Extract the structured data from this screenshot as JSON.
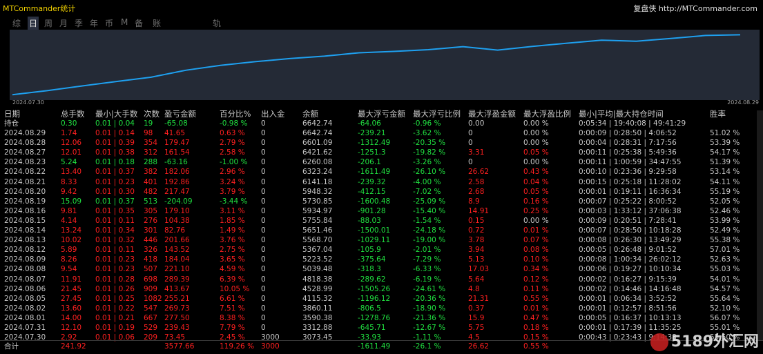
{
  "app_title": "MTCommander统计",
  "site": "复盘侠 http://MTCommander.com",
  "tabs": [
    "综",
    "日",
    "周",
    "月",
    "季",
    "年",
    "币",
    "M",
    "备",
    "账户",
    "轨迹"
  ],
  "active_tab": "日",
  "chart": {
    "x_start": "2024.07.30",
    "x_end": "2024.08.29",
    "line_color": "#1ea0f0",
    "bg_color": "#242a36",
    "curve": [
      3073.45,
      3312.88,
      3590.38,
      3860.11,
      4115.32,
      4528.99,
      4818.38,
      5039.48,
      5223.52,
      5367.04,
      5568.7,
      5651.46,
      5755.84,
      5934.97,
      5730.85,
      5948.32,
      6141.18,
      6323.24,
      6260.08,
      6421.62,
      6601.09,
      6642.74
    ]
  },
  "headers": [
    "日期",
    "总手数",
    "最小|大手数",
    "次数",
    "盈亏金额",
    "百分比%",
    "出入金",
    "余额",
    "最大浮亏金额",
    "最大浮亏比例",
    "最大浮盈金额",
    "最大浮盈比例",
    "最小|平均|最大持仓时间",
    "胜率"
  ],
  "position_row": [
    "持仓",
    "0.30",
    "0.01 | 0.04",
    "19",
    "-65.08",
    "-0.98 %",
    "0",
    "6642.74",
    "-64.06",
    "-0.96 %",
    "0.00",
    "0.00 %",
    "0:05:34 | 19:40:08 | 49:41:29",
    ""
  ],
  "rows": [
    [
      "2024.08.29",
      "1.74",
      "0.01 | 0.14",
      "98",
      "41.65",
      "0.63 %",
      "0",
      "6642.74",
      "-239.21",
      "-3.62 %",
      "0",
      "0.00 %",
      "0:00:09 | 0:28:50 | 4:06:52",
      "51.02 %"
    ],
    [
      "2024.08.28",
      "12.06",
      "0.01 | 0.39",
      "354",
      "179.47",
      "2.79 %",
      "0",
      "6601.09",
      "-1312.49",
      "-20.35 %",
      "0",
      "0.00 %",
      "0:00:04 | 0:28:31 | 7:17:56",
      "53.39 %"
    ],
    [
      "2024.08.27",
      "12.01",
      "0.01 | 0.38",
      "312",
      "161.54",
      "2.58 %",
      "0",
      "6421.62",
      "-1251.3",
      "-19.82 %",
      "3.31",
      "0.05 %",
      "0:00:11 | 0:25:38 | 5:49:36",
      "54.17 %"
    ],
    [
      "2024.08.23",
      "5.24",
      "0.01 | 0.18",
      "288",
      "-63.16",
      "-1.00 %",
      "0",
      "6260.08",
      "-206.1",
      "-3.26 %",
      "0",
      "0.00 %",
      "0:00:11 | 1:00:59 | 34:47:55",
      "51.39 %"
    ],
    [
      "2024.08.22",
      "13.40",
      "0.01 | 0.37",
      "382",
      "182.06",
      "2.96 %",
      "0",
      "6323.24",
      "-1611.49",
      "-26.10 %",
      "26.62",
      "0.43 %",
      "0:00:10 | 0:23:36 | 9:29:58",
      "53.14 %"
    ],
    [
      "2024.08.21",
      "8.33",
      "0.01 | 0.23",
      "401",
      "192.86",
      "3.24 %",
      "0",
      "6141.18",
      "-239.32",
      "-4.00 %",
      "2.58",
      "0.04 %",
      "0:00:15 | 0:25:18 | 11:28:02",
      "54.11 %"
    ],
    [
      "2024.08.20",
      "9.42",
      "0.01 | 0.30",
      "482",
      "217.47",
      "3.79 %",
      "0",
      "5948.32",
      "-412.15",
      "-7.02 %",
      "2.68",
      "0.05 %",
      "0:00:01 | 0:19:11 | 16:36:34",
      "55.19 %"
    ],
    [
      "2024.08.19",
      "15.09",
      "0.01 | 0.37",
      "513",
      "-204.09",
      "-3.44 %",
      "0",
      "5730.85",
      "-1600.48",
      "-25.09 %",
      "8.9",
      "0.16 %",
      "0:00:07 | 0:25:22 | 8:00:52",
      "52.05 %"
    ],
    [
      "2024.08.16",
      "9.81",
      "0.01 | 0.35",
      "305",
      "179.10",
      "3.11 %",
      "0",
      "5934.97",
      "-901.28",
      "-15.40 %",
      "14.91",
      "0.25 %",
      "0:00:03 | 1:33:12 | 37:06:38",
      "52.46 %"
    ],
    [
      "2024.08.15",
      "4.14",
      "0.01 | 0.11",
      "276",
      "104.38",
      "1.85 %",
      "0",
      "5755.84",
      "-88.03",
      "-1.54 %",
      "0.15",
      "0.00 %",
      "0:00:09 | 0:20:51 | 7:28:41",
      "53.99 %"
    ],
    [
      "2024.08.14",
      "13.24",
      "0.01 | 0.34",
      "301",
      "82.76",
      "1.49 %",
      "0",
      "5651.46",
      "-1500.01",
      "-24.18 %",
      "0.72",
      "0.01 %",
      "0:00:07 | 0:28:50 | 10:18:28",
      "52.49 %"
    ],
    [
      "2024.08.13",
      "10.02",
      "0.01 | 0.32",
      "446",
      "201.66",
      "3.76 %",
      "0",
      "5568.70",
      "-1029.11",
      "-19.00 %",
      "3.78",
      "0.07 %",
      "0:00:08 | 0:26:30 | 13:49:29",
      "55.38 %"
    ],
    [
      "2024.08.12",
      "5.89",
      "0.01 | 0.11",
      "326",
      "143.52",
      "2.75 %",
      "0",
      "5367.04",
      "-105.9",
      "-2.01 %",
      "3.94",
      "0.08 %",
      "0:00:05 | 0:26:48 | 9:01:52",
      "57.01 %"
    ],
    [
      "2024.08.09",
      "8.26",
      "0.01 | 0.23",
      "418",
      "184.04",
      "3.65 %",
      "0",
      "5223.52",
      "-375.64",
      "-7.29 %",
      "5.13",
      "0.10 %",
      "0:00:08 | 1:00:34 | 26:02:12",
      "52.63 %"
    ],
    [
      "2024.08.08",
      "9.54",
      "0.01 | 0.23",
      "507",
      "221.10",
      "4.59 %",
      "0",
      "5039.48",
      "-318.3",
      "-6.33 %",
      "17.03",
      "0.34 %",
      "0:00:06 | 0:19:27 | 10:10:34",
      "55.03 %"
    ],
    [
      "2024.08.07",
      "11.91",
      "0.01 | 0.28",
      "698",
      "289.39",
      "6.39 %",
      "0",
      "4818.38",
      "-289.62",
      "-6.19 %",
      "5.64",
      "0.12 %",
      "0:00:02 | 0:16:27 | 9:15:39",
      "54.01 %"
    ],
    [
      "2024.08.06",
      "21.45",
      "0.01 | 0.26",
      "909",
      "413.67",
      "10.05 %",
      "0",
      "4528.99",
      "-1505.26",
      "-24.61 %",
      "4.8",
      "0.11 %",
      "0:00:02 | 0:14:46 | 14:16:48",
      "54.57 %"
    ],
    [
      "2024.08.05",
      "27.45",
      "0.01 | 0.25",
      "1082",
      "255.21",
      "6.61 %",
      "0",
      "4115.32",
      "-1196.12",
      "-20.36 %",
      "21.31",
      "0.55 %",
      "0:00:01 | 0:06:34 | 3:52:52",
      "55.64 %"
    ],
    [
      "2024.08.02",
      "13.60",
      "0.01 | 0.22",
      "547",
      "269.73",
      "7.51 %",
      "0",
      "3860.11",
      "-806.5",
      "-18.90 %",
      "0.37",
      "0.01 %",
      "0:00:01 | 0:12:57 | 8:51:56",
      "52.10 %"
    ],
    [
      "2024.08.01",
      "14.00",
      "0.01 | 0.21",
      "667",
      "277.50",
      "8.38 %",
      "0",
      "3590.38",
      "-1278.76",
      "-21.36 %",
      "15.9",
      "0.47 %",
      "0:00:05 | 0:16:37 | 10:13:13",
      "56.07 %"
    ],
    [
      "2024.07.31",
      "12.10",
      "0.01 | 0.19",
      "529",
      "239.43",
      "7.79 %",
      "0",
      "3312.88",
      "-645.71",
      "-12.67 %",
      "5.75",
      "0.18 %",
      "0:00:01 | 0:17:39 | 11:35:25",
      "55.01 %"
    ],
    [
      "2024.07.30",
      "2.92",
      "0.01 | 0.06",
      "209",
      "73.45",
      "2.45 %",
      "3000",
      "3073.45",
      "-33.93",
      "-1.11 %",
      "4.5",
      "0.15 %",
      "0:00:43 | 0:23:43 | 9:14:38",
      "55.50 %"
    ]
  ],
  "total_row": [
    "合计",
    "241.92",
    "",
    "",
    "3577.66",
    "119.26 %",
    "3000",
    "",
    "-1611.49",
    "-26.1 %",
    "26.62",
    "0.55 %",
    "",
    ""
  ],
  "watermark": "5189外汇网"
}
